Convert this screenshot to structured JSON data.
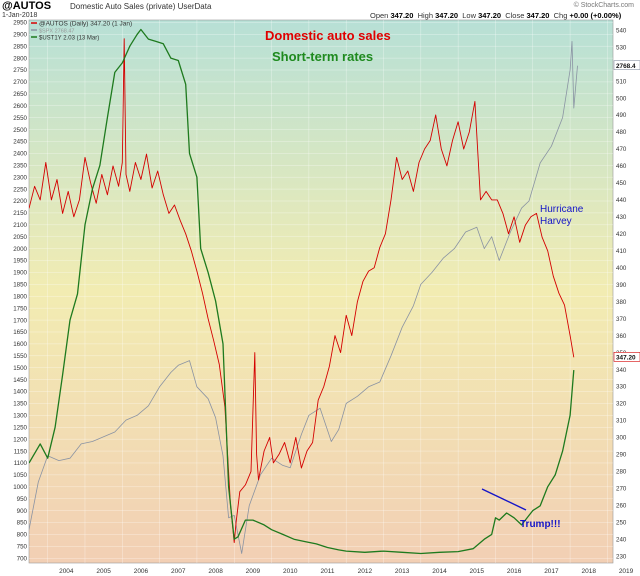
{
  "header": {
    "symbol": "@AUTOS",
    "description": "Domestic Auto Sales (private)  UserData",
    "date": "1-Jan-2018",
    "open_label": "Open",
    "open_value": "347.20",
    "high_label": "High",
    "high_value": "347.20",
    "low_label": "Low",
    "low_value": "347.20",
    "close_label": "Close",
    "close_value": "347.20",
    "chg_label": "Chg",
    "chg_value": "+0.00 (+0.00%)",
    "brand": "© StockCharts.com"
  },
  "legend": [
    {
      "text": "@AUTOS (Daily) 347.20 (1 Jan)",
      "color": "#d40000"
    },
    {
      "text": "$SPX 2768.47",
      "color": "#8a93a3"
    },
    {
      "text": "$UST1Y 2.03 (13 Mar)",
      "color": "#1e7a1e"
    }
  ],
  "annotations": {
    "auto_sales": "Domestic auto sales",
    "short_rates": "Short-term rates",
    "hurricane_1": "Hurricane",
    "hurricane_2": "Harvey",
    "trump": "Trump!!!"
  },
  "colors": {
    "autos": "#d40000",
    "spx": "#8a93a3",
    "rates": "#1e7a1e",
    "annotation_blue": "#1515c8",
    "bg_top": "#b7e0d6",
    "bg_mid": "#f2ecb2",
    "bg_bottom": "#f2cfb4"
  },
  "chart_data": {
    "type": "line",
    "grid": true,
    "x_tick_labels": [
      "2004",
      "2005",
      "2006",
      "2007",
      "2008",
      "2009",
      "2010",
      "2011",
      "2012",
      "2013",
      "2014",
      "2015",
      "2016",
      "2017",
      "2018",
      "2019"
    ],
    "xlim": [
      2003.5,
      2019.15
    ],
    "left_axis": {
      "ylim": [
        680,
        2960
      ],
      "ticks": [
        700,
        750,
        800,
        850,
        900,
        950,
        1000,
        1050,
        1100,
        1150,
        1200,
        1250,
        1300,
        1350,
        1400,
        1450,
        1500,
        1550,
        1600,
        1650,
        1700,
        1750,
        1800,
        1850,
        1900,
        1950,
        2000,
        2050,
        2100,
        2150,
        2200,
        2250,
        2300,
        2350,
        2400,
        2450,
        2500,
        2550,
        2600,
        2650,
        2700,
        2750,
        2800,
        2850,
        2900,
        2950
      ]
    },
    "right_axis": {
      "ylim": [
        226,
        546
      ],
      "ticks": [
        230,
        240,
        250,
        260,
        270,
        280,
        290,
        300,
        310,
        320,
        330,
        340,
        350,
        360,
        370,
        380,
        390,
        400,
        410,
        420,
        430,
        440,
        450,
        460,
        470,
        480,
        490,
        500,
        510,
        520,
        530,
        540
      ]
    },
    "price_labels": [
      {
        "text": "2768.4",
        "axis": "left",
        "value": 2768.4,
        "color": "#8a93a3"
      },
      {
        "text": "347.20",
        "axis": "right",
        "value": 347.2,
        "color": "#d40000"
      }
    ],
    "series": [
      {
        "name": "@AUTOS (Daily) 347.20 (1 Jan)",
        "axis": "right",
        "x": [
          2003.5,
          2003.65,
          2003.8,
          2003.95,
          2004.1,
          2004.25,
          2004.4,
          2004.55,
          2004.7,
          2004.85,
          2005.0,
          2005.15,
          2005.3,
          2005.45,
          2005.6,
          2005.75,
          2005.9,
          2006.0,
          2006.05,
          2006.1,
          2006.2,
          2006.35,
          2006.5,
          2006.65,
          2006.8,
          2006.95,
          2007.1,
          2007.25,
          2007.4,
          2007.55,
          2007.7,
          2007.85,
          2008.0,
          2008.15,
          2008.3,
          2008.45,
          2008.6,
          2008.75,
          2008.9,
          2009.0,
          2009.05,
          2009.15,
          2009.3,
          2009.45,
          2009.55,
          2009.6,
          2009.65,
          2009.8,
          2009.95,
          2010.0,
          2010.05,
          2010.2,
          2010.35,
          2010.5,
          2010.65,
          2010.8,
          2010.95,
          2011.1,
          2011.25,
          2011.4,
          2011.55,
          2011.7,
          2011.85,
          2012.0,
          2012.15,
          2012.3,
          2012.45,
          2012.6,
          2012.75,
          2012.9,
          2013.05,
          2013.2,
          2013.35,
          2013.5,
          2013.65,
          2013.8,
          2013.95,
          2014.1,
          2014.25,
          2014.4,
          2014.55,
          2014.7,
          2014.85,
          2015.0,
          2015.15,
          2015.3,
          2015.45,
          2015.6,
          2015.75,
          2015.9,
          2016.05,
          2016.2,
          2016.35,
          2016.5,
          2016.65,
          2016.8,
          2016.95,
          2017.1,
          2017.25,
          2017.4,
          2017.55,
          2017.7,
          2017.85,
          2018.0,
          2018.1
        ],
        "values": [
          435,
          448,
          440,
          462,
          440,
          452,
          432,
          445,
          430,
          440,
          465,
          450,
          438,
          455,
          443,
          460,
          448,
          462,
          535,
          455,
          445,
          462,
          452,
          467,
          447,
          457,
          443,
          432,
          437,
          428,
          420,
          410,
          398,
          385,
          370,
          357,
          343,
          318,
          260,
          238,
          250,
          268,
          272,
          280,
          350,
          290,
          275,
          292,
          300,
          292,
          285,
          290,
          297,
          285,
          300,
          282,
          292,
          297,
          322,
          330,
          342,
          360,
          350,
          372,
          360,
          380,
          392,
          398,
          400,
          412,
          420,
          440,
          465,
          452,
          457,
          445,
          462,
          470,
          475,
          490,
          470,
          460,
          475,
          486,
          470,
          480,
          498,
          440,
          445,
          440,
          440,
          432,
          420,
          430,
          415,
          425,
          430,
          432,
          418,
          410,
          395,
          385,
          378,
          360,
          347.2
        ]
      },
      {
        "name": "$SPX 2768.47",
        "axis": "left",
        "x": [
          2003.5,
          2003.75,
          2004.0,
          2004.3,
          2004.6,
          2004.9,
          2005.2,
          2005.5,
          2005.8,
          2006.1,
          2006.4,
          2006.7,
          2007.0,
          2007.3,
          2007.5,
          2007.8,
          2008.0,
          2008.3,
          2008.5,
          2008.7,
          2008.85,
          2009.0,
          2009.2,
          2009.4,
          2009.7,
          2010.0,
          2010.3,
          2010.5,
          2010.8,
          2011.0,
          2011.3,
          2011.6,
          2011.8,
          2012.0,
          2012.3,
          2012.6,
          2012.9,
          2013.2,
          2013.5,
          2013.8,
          2014.0,
          2014.3,
          2014.6,
          2014.9,
          2015.2,
          2015.5,
          2015.7,
          2015.9,
          2016.1,
          2016.4,
          2016.7,
          2016.9,
          2017.2,
          2017.5,
          2017.8,
          2018.0,
          2018.05,
          2018.1,
          2018.2
        ],
        "values": [
          820,
          1020,
          1130,
          1110,
          1120,
          1180,
          1190,
          1210,
          1230,
          1280,
          1300,
          1340,
          1420,
          1480,
          1510,
          1530,
          1420,
          1370,
          1290,
          1130,
          870,
          880,
          720,
          920,
          1050,
          1120,
          1090,
          1080,
          1220,
          1300,
          1330,
          1190,
          1240,
          1350,
          1380,
          1420,
          1440,
          1550,
          1670,
          1760,
          1850,
          1900,
          1960,
          2000,
          2070,
          2090,
          2000,
          2050,
          1950,
          2070,
          2170,
          2200,
          2360,
          2430,
          2550,
          2750,
          2870,
          2590,
          2768
        ]
      },
      {
        "name": "$UST1Y 2.03 (13 Mar)",
        "axis": "left",
        "x": [
          2003.5,
          2003.8,
          2004.0,
          2004.2,
          2004.4,
          2004.6,
          2004.8,
          2005.0,
          2005.2,
          2005.4,
          2005.6,
          2005.8,
          2006.0,
          2006.2,
          2006.4,
          2006.5,
          2006.7,
          2006.9,
          2007.1,
          2007.3,
          2007.5,
          2007.7,
          2007.8,
          2008.0,
          2008.1,
          2008.3,
          2008.5,
          2008.7,
          2008.85,
          2009.0,
          2009.1,
          2009.3,
          2009.5,
          2009.8,
          2010.0,
          2010.3,
          2010.6,
          2010.9,
          2011.2,
          2011.5,
          2011.8,
          2012.0,
          2012.5,
          2013.0,
          2013.5,
          2014.0,
          2014.5,
          2015.0,
          2015.4,
          2015.7,
          2015.9,
          2016.0,
          2016.1,
          2016.3,
          2016.5,
          2016.7,
          2016.9,
          2017.0,
          2017.2,
          2017.4,
          2017.6,
          2017.8,
          2018.0,
          2018.1
        ],
        "values": [
          1100,
          1180,
          1120,
          1250,
          1470,
          1700,
          1810,
          2100,
          2250,
          2350,
          2550,
          2740,
          2780,
          2850,
          2900,
          2920,
          2880,
          2870,
          2860,
          2800,
          2790,
          2690,
          2400,
          2300,
          2000,
          1900,
          1780,
          1600,
          1000,
          780,
          790,
          860,
          860,
          840,
          820,
          800,
          780,
          770,
          760,
          745,
          735,
          730,
          725,
          730,
          725,
          720,
          725,
          728,
          740,
          780,
          800,
          870,
          860,
          890,
          870,
          840,
          880,
          900,
          920,
          1000,
          1050,
          1150,
          1300,
          1490
        ]
      }
    ]
  }
}
